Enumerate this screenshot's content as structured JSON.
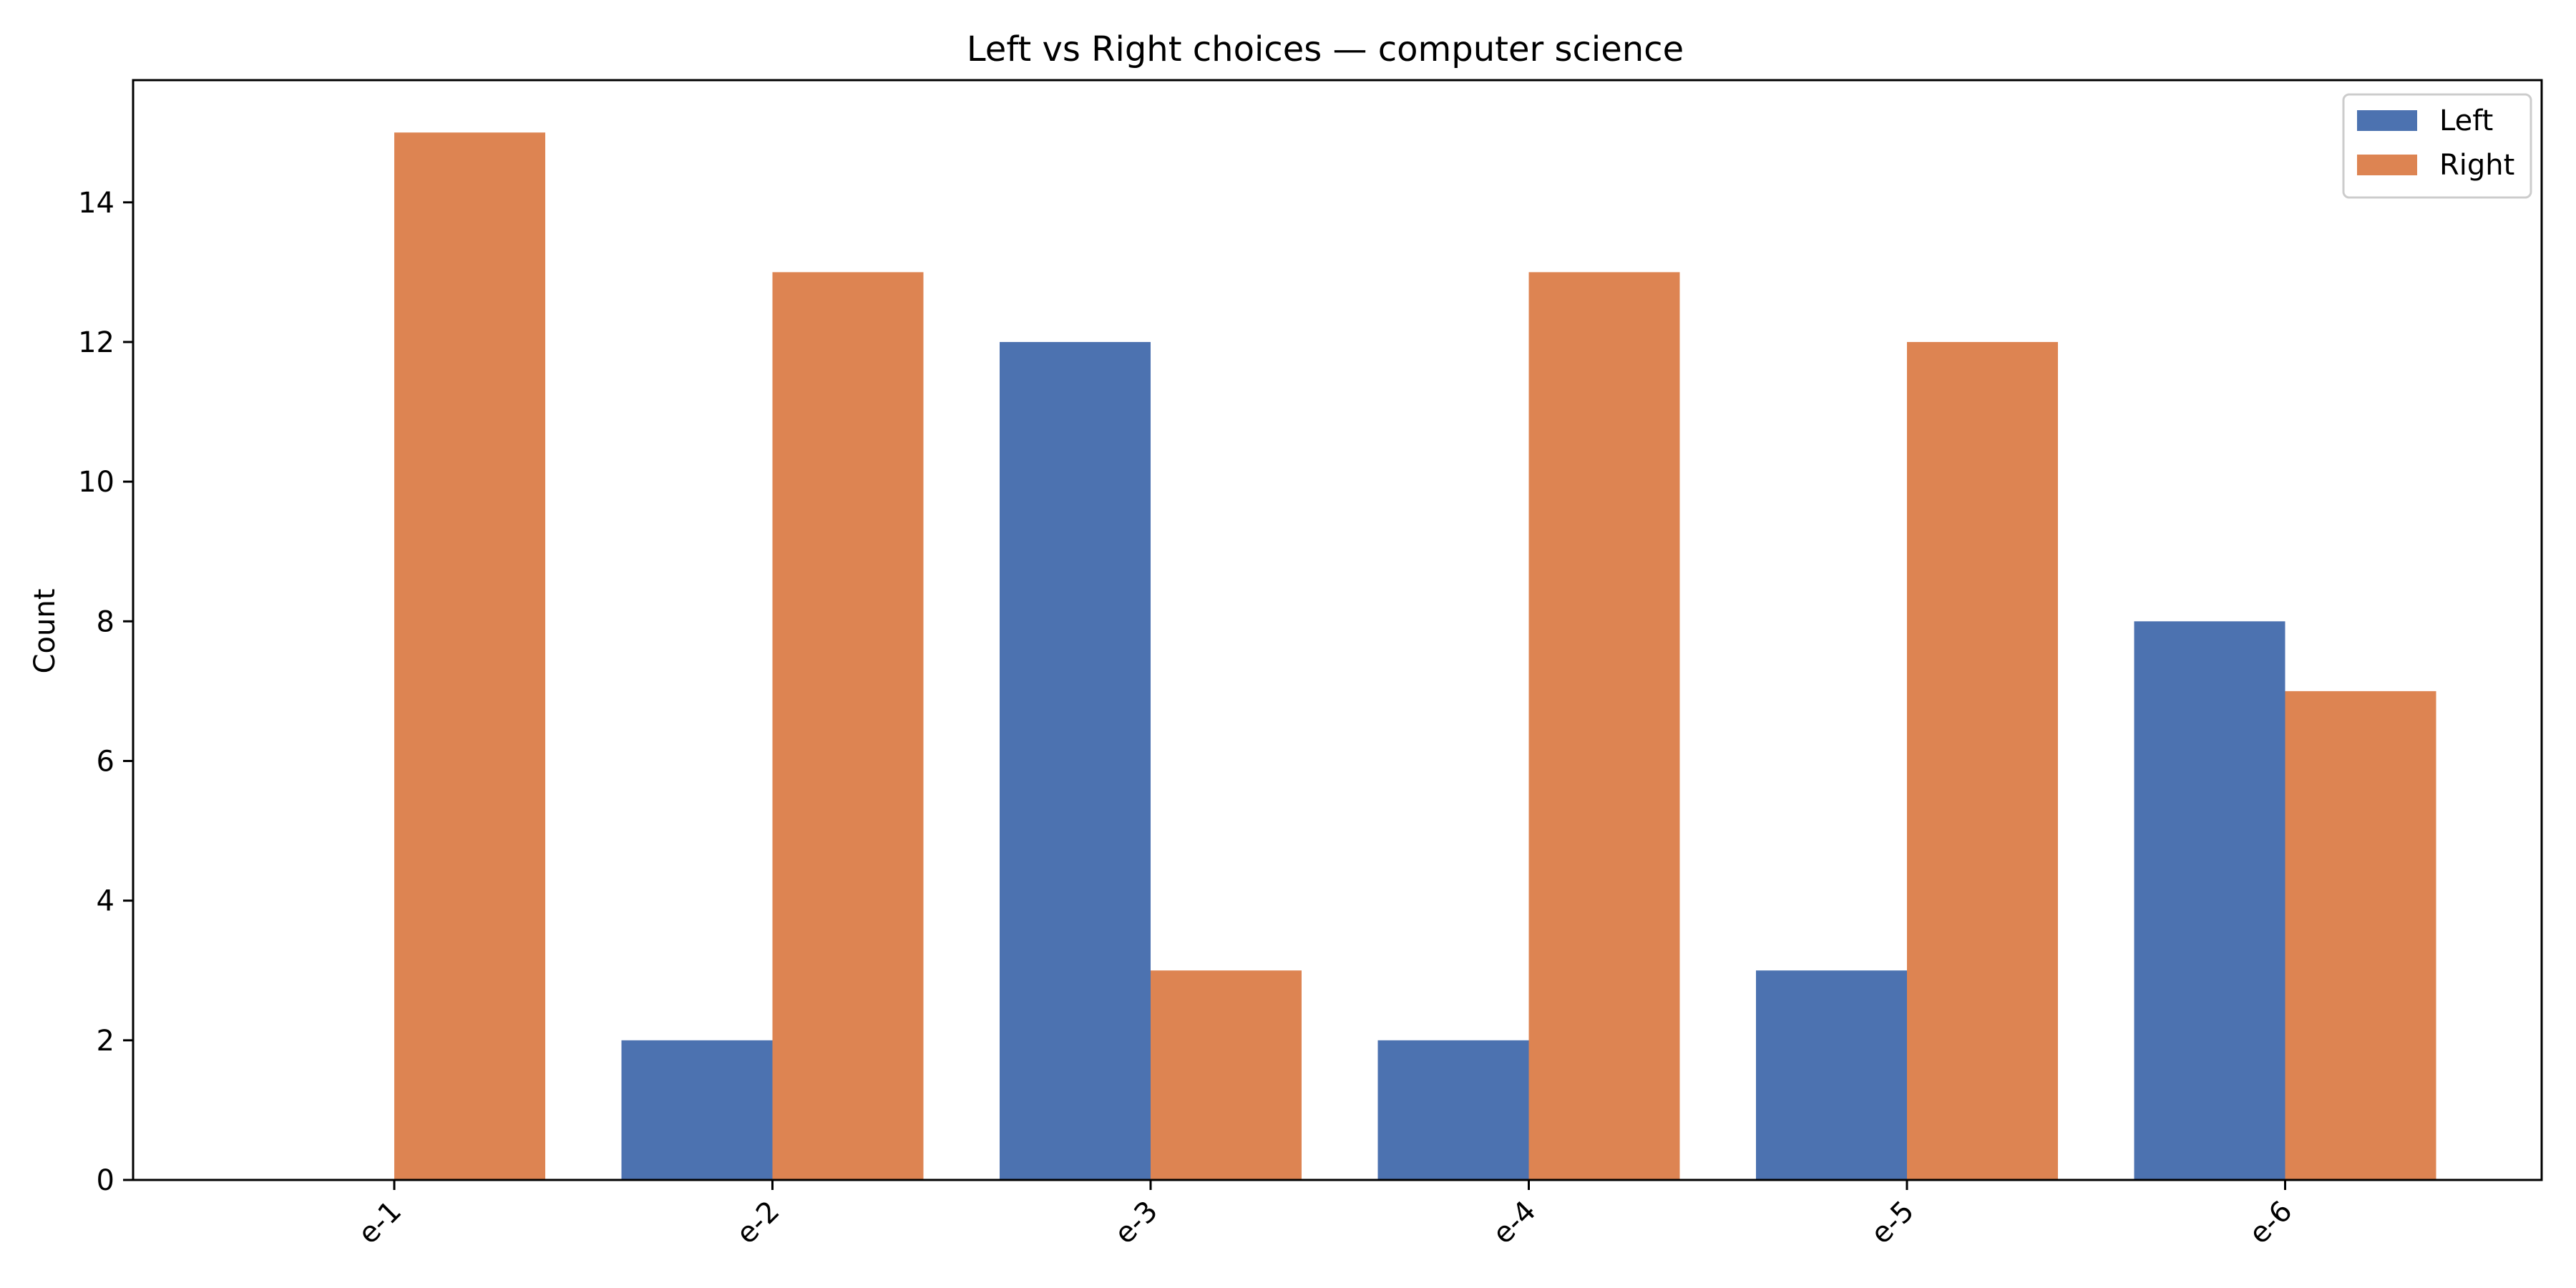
{
  "chart_data": {
    "type": "bar",
    "title": "Left vs Right choices — computer science",
    "xlabel": "",
    "ylabel": "Count",
    "categories": [
      "e-1",
      "e-2",
      "e-3",
      "e-4",
      "e-5",
      "e-6"
    ],
    "series": [
      {
        "name": "Left",
        "color": "#4c72b0",
        "values": [
          0,
          2,
          12,
          2,
          3,
          8
        ]
      },
      {
        "name": "Right",
        "color": "#dd8452",
        "values": [
          15,
          13,
          3,
          13,
          12,
          7
        ]
      }
    ],
    "ylim": [
      0,
      15.75
    ],
    "yticks": [
      "0",
      "2",
      "4",
      "6",
      "8",
      "10",
      "12",
      "14"
    ],
    "grid": false,
    "legend_position": "top-right"
  }
}
